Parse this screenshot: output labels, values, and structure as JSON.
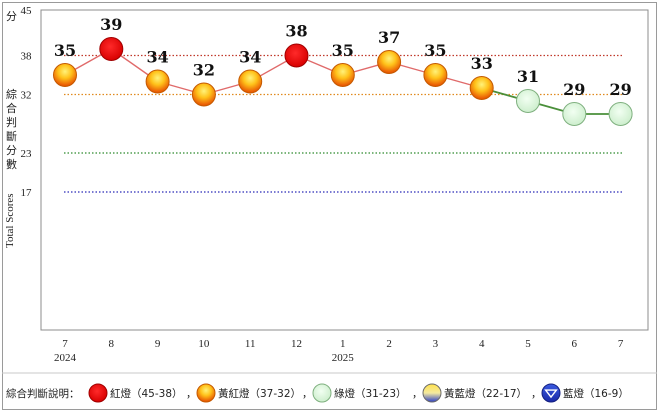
{
  "chart_data": {
    "type": "line",
    "y_unit_label": "分",
    "ylabel_zh": "綜合判斷分數",
    "ylabel_en": "Total Scores",
    "ylim": [
      0,
      45
    ],
    "yticks": [
      17,
      23,
      32,
      38,
      45
    ],
    "thresholds": [
      {
        "value": 38,
        "color": "#c0392b"
      },
      {
        "value": 32,
        "color": "#e08a1e"
      },
      {
        "value": 23,
        "color": "#2e8b2e"
      },
      {
        "value": 17,
        "color": "#2a2ab8"
      }
    ],
    "x": [
      "7",
      "8",
      "9",
      "10",
      "11",
      "12",
      "1",
      "2",
      "3",
      "4",
      "5",
      "6",
      "7"
    ],
    "year_labels": [
      {
        "index": 0,
        "text": "2024"
      },
      {
        "index": 6,
        "text": "2025"
      }
    ],
    "values": [
      35,
      39,
      34,
      32,
      34,
      38,
      35,
      37,
      35,
      33,
      31,
      29,
      29
    ],
    "signals": [
      "yellow-red",
      "red",
      "yellow-red",
      "yellow-red",
      "yellow-red",
      "red",
      "yellow-red",
      "yellow-red",
      "yellow-red",
      "yellow-red",
      "green",
      "green",
      "green"
    ],
    "grid": false
  },
  "legend": {
    "title": "綜合判斷說明：",
    "items": [
      {
        "signal": "red",
        "label": "紅燈（45-38）"
      },
      {
        "signal": "yellow-red",
        "label": "黃紅燈（37-32）"
      },
      {
        "signal": "green",
        "label": "綠燈（31-23）"
      },
      {
        "signal": "yellow-blue",
        "label": "黃藍燈（22-17）"
      },
      {
        "signal": "blue",
        "label": "藍燈（16-9）"
      }
    ],
    "separator": "，"
  },
  "colors": {
    "line_red_zone": "#e06a6a",
    "line_green_zone": "#4a8f3a",
    "red_light": "#e00000",
    "green_light": "#ddf5dd"
  }
}
